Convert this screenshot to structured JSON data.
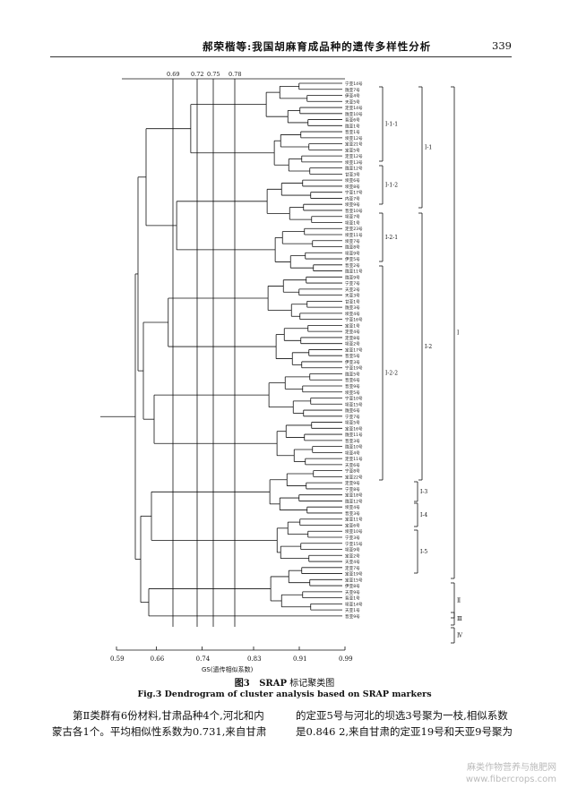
{
  "header": {
    "title": "郝荣楷等:我国胡麻育成品种的遗传多样性分析",
    "page_number": "339"
  },
  "chart_data": {
    "type": "dendrogram",
    "xlabel": "GS(遗传相似系数)",
    "xlim": [
      0.59,
      0.99
    ],
    "x_ticks": [
      "0.59",
      "0.66",
      "0.74",
      "0.83",
      "0.91",
      "0.99"
    ],
    "top_markers": [
      "0.69",
      "0.72",
      "0.75",
      "0.78"
    ],
    "leaves": [
      "宁亚14号",
      "陇亚7号",
      "伊亚4号",
      "天亚5号",
      "定亚14号",
      "陇亚10号",
      "晋亚6号",
      "陇亚1号",
      "晋亚1号",
      "坝亚12号",
      "定亚21号",
      "定亚5号",
      "定亚12号",
      "坝亚13号",
      "陇亚12号",
      "甘亚3号",
      "坝亚6号",
      "坝亚8号",
      "宁亚17号",
      "内亚7号",
      "坝亚9号",
      "晋亚10号",
      "坝亚7号",
      "坝亚1号",
      "定亚23号",
      "坝亚11号",
      "坝亚7号",
      "陇亚8号",
      "坝亚9号",
      "伊亚5号",
      "晋亚2号",
      "陇亚11号",
      "陇亚9号",
      "宁亚7号",
      "天亚2号",
      "天亚3号",
      "甘亚1号",
      "陇亚3号",
      "坝亚4号",
      "宁亚16号",
      "定亚1号",
      "定亚4号",
      "定亚8号",
      "坝亚2号",
      "定亚17号",
      "晋亚5号",
      "伊亚3号",
      "宁亚19号",
      "陇亚5号",
      "晋亚6号",
      "晋亚9号",
      "坝亚5号",
      "宁亚10号",
      "坝亚15号",
      "陇亚6号",
      "宁亚7号",
      "坝亚5号",
      "定亚16号",
      "陇亚11号",
      "晋亚3号",
      "陇亚10号",
      "坝亚4号",
      "定亚11号",
      "天亚6号",
      "宁亚8号",
      "定亚22号",
      "定亚9号",
      "宁亚8号",
      "定亚18号",
      "陇亚12号",
      "坝亚4号",
      "晋亚3号",
      "定亚11号",
      "定亚6号",
      "坝亚10号",
      "宁亚3号",
      "宁亚15号",
      "坝亚9号",
      "定亚2号",
      "天亚4号",
      "定亚7号",
      "定亚19号",
      "定亚15号",
      "伊亚8号",
      "天亚9号",
      "晋亚1号",
      "坝亚14号",
      "天亚1号",
      "晋亚9号"
    ],
    "groups": [
      "Ⅰ-1-1",
      "Ⅰ-1-2",
      "Ⅰ-1",
      "Ⅰ-2-1",
      "Ⅰ-2-2",
      "Ⅰ-2",
      "Ⅰ-3",
      "Ⅰ-4",
      "Ⅰ-5",
      "Ⅰ",
      "Ⅱ",
      "Ⅲ",
      "Ⅳ"
    ]
  },
  "caption": {
    "fig_cn_num": "图3",
    "fig_cn_title_a": "SRAP",
    "fig_cn_title_b": " 标记聚类图",
    "fig_en": "Fig.3   Dendrogram of cluster analysis based on SRAP markers"
  },
  "body": {
    "left_paragraph": "第Ⅱ类群有6份材料,甘肃品种4个,河北和内蒙古各1个。平均相似性系数为0.731,来自甘肃",
    "right_paragraph": "的定亚5号与河北的坝选3号聚为一枝,相似系数是0.846 2,来自甘肃的定亚19号和天亚9号聚为"
  },
  "watermark": {
    "line1": "麻类作物营养与施肥网",
    "line2": "www.fibercrops.com"
  }
}
